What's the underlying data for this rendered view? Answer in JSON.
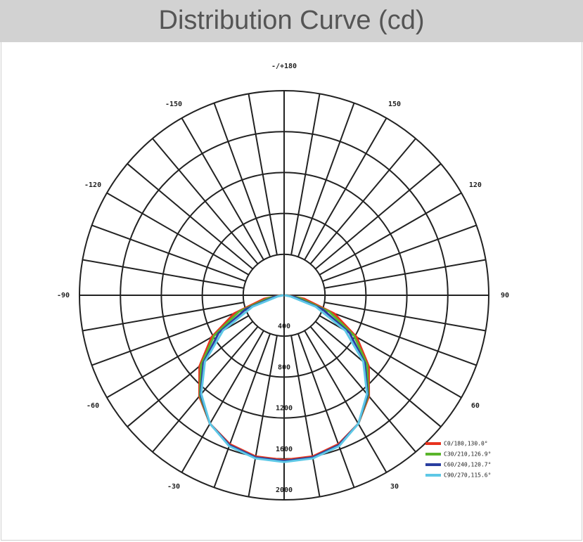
{
  "chart_data": {
    "type": "polar",
    "title": "Distribution Curve (cd)",
    "angle_ticks": [
      {
        "value": 180,
        "label": "-/+180"
      },
      150,
      120,
      90,
      60,
      30,
      -30,
      -60,
      -90,
      -120,
      -150
    ],
    "rlim": [
      0,
      2000
    ],
    "rticks": [
      400,
      800,
      1200,
      1600,
      2000
    ],
    "x": [
      -90,
      -80,
      -70,
      -60,
      -50,
      -40,
      -30,
      -20,
      -10,
      0,
      10,
      20,
      30,
      40,
      50,
      60,
      70,
      80,
      90
    ],
    "series": [
      {
        "name": "C0/180,130.0°",
        "color": "#e8321e",
        "values": [
          30,
          200,
          520,
          820,
          1080,
          1290,
          1450,
          1550,
          1600,
          1610,
          1600,
          1550,
          1450,
          1290,
          1080,
          820,
          520,
          200,
          30
        ]
      },
      {
        "name": "C30/210,126.9°",
        "color": "#5ab52c",
        "values": [
          20,
          150,
          470,
          790,
          1060,
          1280,
          1450,
          1560,
          1610,
          1620,
          1610,
          1560,
          1450,
          1280,
          1060,
          790,
          470,
          150,
          20
        ]
      },
      {
        "name": "C60/240,120.7°",
        "color": "#2a3ea0",
        "values": [
          10,
          100,
          400,
          740,
          1030,
          1270,
          1450,
          1560,
          1610,
          1620,
          1610,
          1560,
          1450,
          1270,
          1030,
          740,
          400,
          100,
          10
        ]
      },
      {
        "name": "C90/270,115.6°",
        "color": "#5ec8e6",
        "values": [
          5,
          60,
          330,
          690,
          1010,
          1260,
          1450,
          1570,
          1620,
          1630,
          1620,
          1570,
          1450,
          1260,
          1010,
          690,
          330,
          60,
          5
        ]
      }
    ],
    "legend": "bottom-right"
  }
}
